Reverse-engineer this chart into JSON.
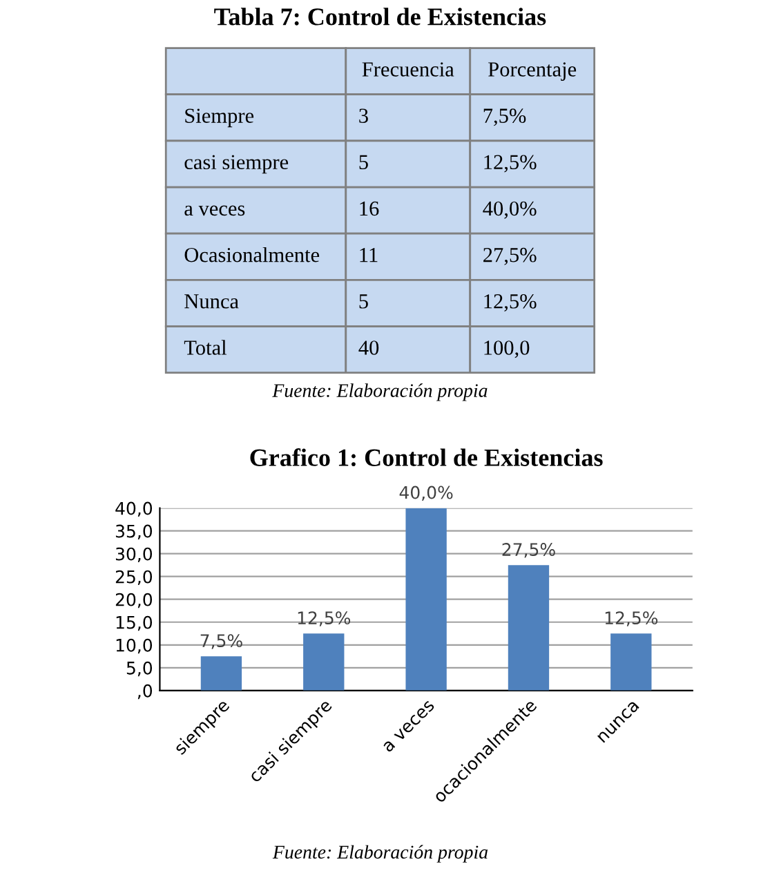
{
  "chart_data": [
    {
      "type": "other",
      "title": "Tabla 7: Control de Existencias",
      "categories": [
        "Frecuencia",
        "Porcentaje"
      ],
      "y_categories": [
        "Siempre",
        "casi siempre",
        "a veces",
        "Ocasionalmente",
        "Nunca",
        "Total"
      ],
      "cell_labels": [
        [
          "3",
          "7,5%"
        ],
        [
          "5",
          "12,5%"
        ],
        [
          "16",
          "40,0%"
        ],
        [
          "11",
          "27,5%"
        ],
        [
          "5",
          "12,5%"
        ],
        [
          "40",
          "100,0"
        ]
      ],
      "annotations": [
        "Fuente: Elaboración propia"
      ]
    },
    {
      "type": "bar",
      "title": "Grafico 1: Control de Existencias",
      "categories": [
        "siempre",
        "casi siempre",
        "a veces",
        "ocacionalmente",
        "nunca"
      ],
      "values": [
        7.5,
        12.5,
        40.0,
        27.5,
        12.5
      ],
      "value_labels": [
        "7,5%",
        "12,5%",
        "40,0%",
        "27,5%",
        "12,5%"
      ],
      "color": "#4f81bd",
      "ylim": [
        0,
        40
      ],
      "yticks": [
        {
          "value": 0,
          "label": ",0"
        },
        {
          "value": 5,
          "label": "5,0"
        },
        {
          "value": 10,
          "label": "10,0"
        },
        {
          "value": 15,
          "label": "15,0"
        },
        {
          "value": 20,
          "label": "20,0"
        },
        {
          "value": 25,
          "label": "25,0"
        },
        {
          "value": 30,
          "label": "30,0"
        },
        {
          "value": 35,
          "label": "35,0"
        },
        {
          "value": 40,
          "label": "40,0"
        }
      ],
      "grid": "y",
      "annotations": [
        "Fuente: Elaboración propia"
      ]
    }
  ]
}
